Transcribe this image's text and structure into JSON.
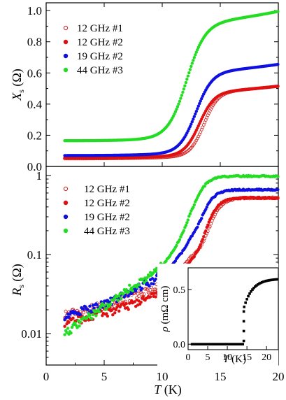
{
  "chart_data": [
    {
      "type": "scatter",
      "panel": "top",
      "ylabel_main": "X",
      "ylabel_sub": "s",
      "ylabel_unit": "(Ω)",
      "xlim": [
        0,
        20
      ],
      "ylim": [
        0,
        1.05
      ],
      "yscale": "linear",
      "yticks": [
        0.0,
        0.2,
        0.4,
        0.6,
        0.8,
        1.0
      ],
      "ytick_labels": [
        "0.0",
        "0.2",
        "0.4",
        "0.6",
        "0.8",
        "1.0"
      ],
      "legend_position": "top-left",
      "series": [
        {
          "name": "12 GHz #1",
          "color": "#d62020",
          "marker": "open-circle",
          "start": 0.05,
          "end": 0.515,
          "tc": 13.6,
          "width": 0.6
        },
        {
          "name": "12 GHz #2",
          "color": "#e01010",
          "marker": "filled-circle",
          "start": 0.055,
          "end": 0.515,
          "tc": 13.2,
          "width": 0.65
        },
        {
          "name": "19 GHz #2",
          "color": "#1010e0",
          "marker": "filled-circle",
          "start": 0.07,
          "end": 0.655,
          "tc": 12.9,
          "width": 0.7
        },
        {
          "name": "44 GHz #3",
          "color": "#22dd22",
          "marker": "filled-circle",
          "start": 0.165,
          "end": 0.995,
          "tc": 12.1,
          "width": 0.8
        }
      ]
    },
    {
      "type": "scatter",
      "panel": "bottom",
      "ylabel_main": "R",
      "ylabel_sub": "s",
      "ylabel_unit": "(Ω)",
      "xlabel_main": "T",
      "xlabel_unit": "(K)",
      "xlim": [
        0,
        20
      ],
      "ylim": [
        0.004,
        1.3
      ],
      "yscale": "log",
      "yticks": [
        0.01,
        0.1,
        1
      ],
      "ytick_labels": [
        "0.01",
        "0.1",
        "1"
      ],
      "xticks": [
        0,
        5,
        10,
        15,
        20
      ],
      "xtick_labels": [
        "0",
        "5",
        "10",
        "15",
        "20"
      ],
      "legend_position": "top-left",
      "series": [
        {
          "name": "12 GHz #1",
          "color": "#d62020",
          "marker": "open-circle",
          "low": [
            0.018,
            0.025,
            0.04,
            0.085
          ],
          "high": 0.52,
          "tc": 14.0
        },
        {
          "name": "12 GHz #2",
          "color": "#e01010",
          "marker": "filled-circle",
          "low": [
            0.014,
            0.02,
            0.032,
            0.07
          ],
          "high": 0.52,
          "tc": 13.7
        },
        {
          "name": "19 GHz #2",
          "color": "#1010e0",
          "marker": "filled-circle",
          "low": [
            0.017,
            0.027,
            0.055,
            0.13
          ],
          "high": 0.66,
          "tc": 13.4
        },
        {
          "name": "44 GHz #3",
          "color": "#22dd22",
          "marker": "filled-circle",
          "low": [
            0.011,
            0.028,
            0.07,
            0.2
          ],
          "high": 0.98,
          "tc": 12.8
        }
      ]
    },
    {
      "type": "scatter",
      "panel": "inset",
      "ylabel_main": "ρ",
      "ylabel_unit": "(mΩ cm)",
      "xlabel_main": "T",
      "xlabel_unit": "(K)",
      "xlim": [
        0,
        23
      ],
      "ylim": [
        -0.05,
        0.7
      ],
      "yticks": [
        0.0,
        0.5
      ],
      "ytick_labels": [
        "0.0",
        "0.5"
      ],
      "xticks": [
        0,
        5,
        10,
        15,
        20
      ],
      "xtick_labels": [
        "0",
        "5",
        "10",
        "15",
        "20"
      ],
      "series": [
        {
          "name": "",
          "color": "#000000",
          "marker": "filled-square",
          "tc": 14.2,
          "jump": 0.33,
          "end": 0.6
        }
      ]
    }
  ]
}
